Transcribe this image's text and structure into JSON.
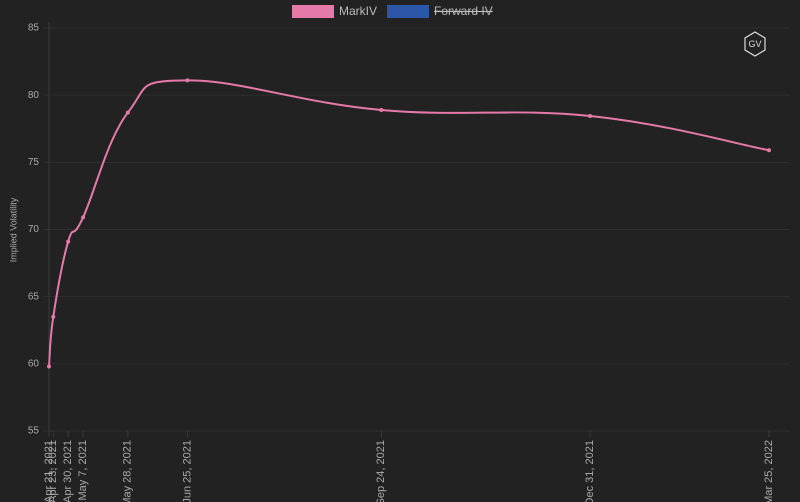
{
  "chart_data": {
    "type": "line",
    "y_label": "Implied Volatility",
    "logo": "GV",
    "x": [
      "Apr 21, 2021",
      "Apr 23, 2021",
      "Apr 30, 2021",
      "May 7, 2021",
      "May 28, 2021",
      "Jun 25, 2021",
      "Sep 24, 2021",
      "Dec 31, 2021",
      "Mar 25, 2022"
    ],
    "series": [
      {
        "name": "MarkIV",
        "color": "#e57aa9",
        "values": [
          59.8,
          63.5,
          69.1,
          70.9,
          78.7,
          81.1,
          78.9,
          78.45,
          75.9
        ]
      },
      {
        "name": "Forward IV",
        "color": "#2c56a8",
        "hidden": true,
        "values": [
          null,
          null,
          null,
          null,
          null,
          null,
          null,
          null,
          null
        ]
      }
    ],
    "ylim": [
      55,
      85
    ],
    "yticks": [
      55,
      60,
      65,
      70,
      75,
      80,
      85
    ],
    "grid": true
  }
}
